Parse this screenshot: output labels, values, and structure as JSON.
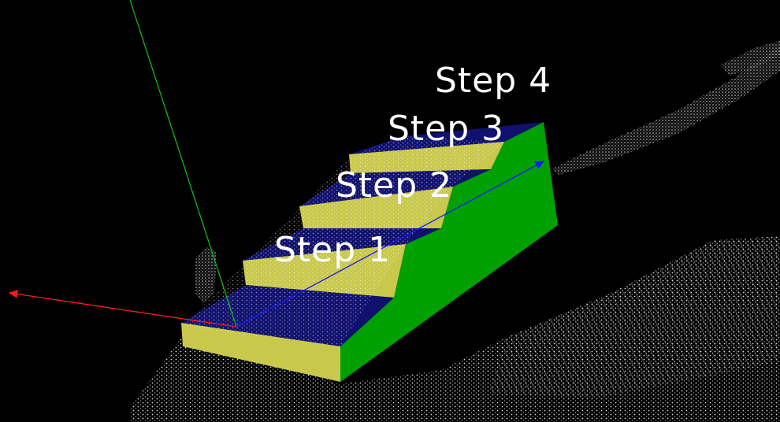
{
  "step_labels": {
    "step1": "Step 1",
    "step2": "Step 2",
    "step3": "Step 3",
    "step4": "Step 4"
  },
  "colors": {
    "background": "#000000",
    "tread": "#10106e",
    "riser": "#c8c84c",
    "side": "#00a000",
    "point_cloud": "#ffffff",
    "x_axis": "#ff1a1a",
    "y_axis": "#16c316",
    "z_axis": "#1a1aff",
    "label_text": "#ffffff"
  },
  "icons": {
    "x_axis": "red-arrow-axis",
    "y_axis": "green-line-axis",
    "z_axis": "blue-arrow-axis"
  }
}
